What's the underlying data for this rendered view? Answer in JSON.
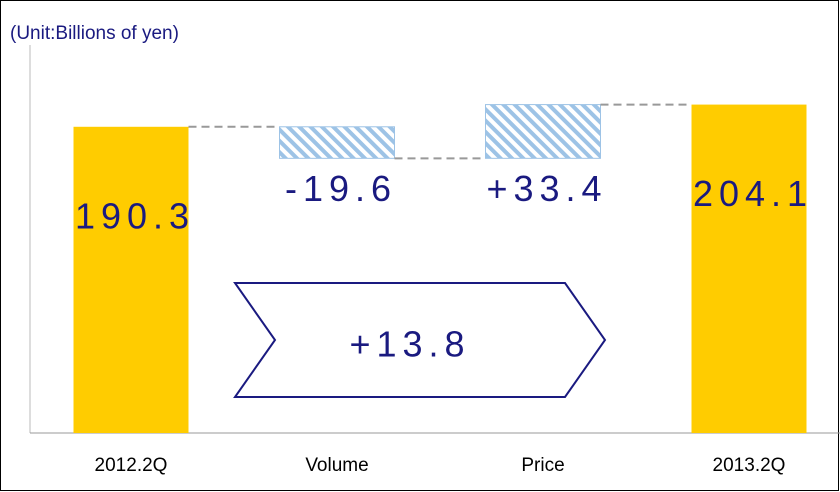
{
  "chart_data": {
    "type": "waterfall",
    "subtitle": "(Unit:Billions of yen)",
    "categories": [
      "2012.2Q",
      "Volume",
      "Price",
      "2013.2Q"
    ],
    "values": [
      190.3,
      -19.6,
      33.4,
      204.1
    ],
    "value_labels": [
      "190.3",
      "-19.6",
      "+33.4",
      "204.1"
    ],
    "annotation": "+13.8",
    "total_color": "#ffcc00",
    "change_color": "#9dc3e6",
    "text_color": "#1a1a80",
    "ylim": [
      0,
      220
    ]
  }
}
